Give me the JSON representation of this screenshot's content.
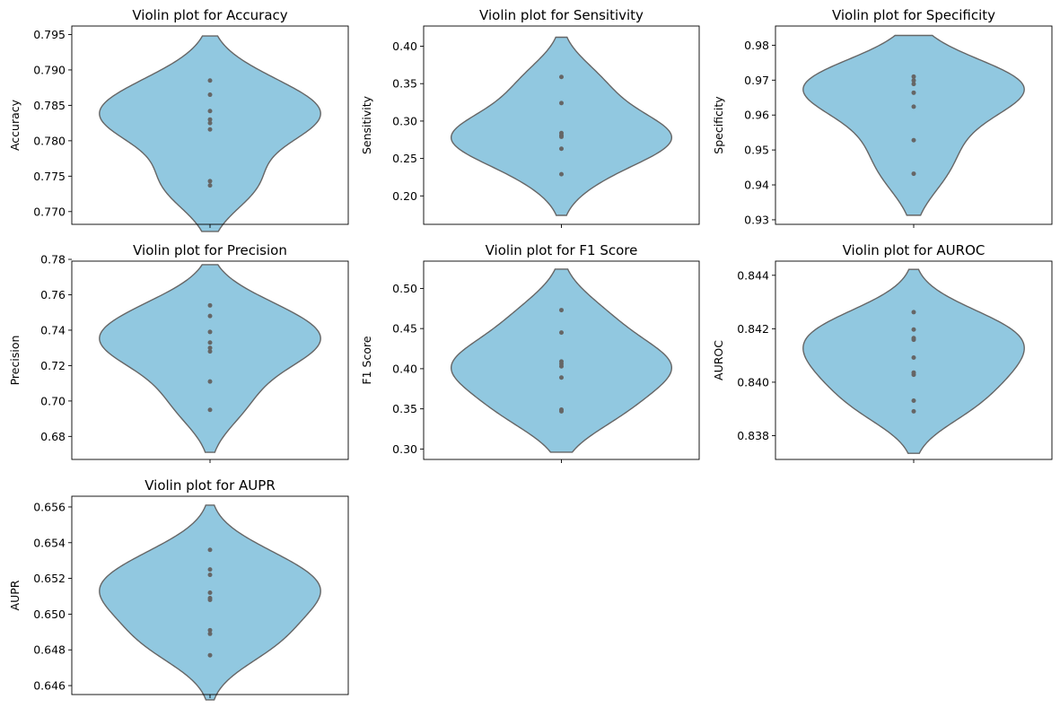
{
  "chart_data": [
    {
      "type": "violin",
      "title": "Violin plot for Accuracy",
      "ylabel": "Accuracy",
      "ylim": [
        0.7682,
        0.7962
      ],
      "yticks": [
        "0.770",
        "0.775",
        "0.780",
        "0.785",
        "0.790",
        "0.795"
      ],
      "violin_range": [
        0.7672,
        0.7948
      ],
      "points": [
        0.7885,
        0.7865,
        0.7842,
        0.783,
        0.7825,
        0.7816,
        0.7743,
        0.7737
      ],
      "fill_color": "#91C8E0",
      "point_color": "#666666"
    },
    {
      "type": "violin",
      "title": "Violin plot for Sensitivity",
      "ylabel": "Sensitivity",
      "ylim": [
        0.162,
        0.427
      ],
      "yticks": [
        "0.20",
        "0.25",
        "0.30",
        "0.35",
        "0.40"
      ],
      "violin_range": [
        0.174,
        0.412
      ],
      "points": [
        0.359,
        0.324,
        0.284,
        0.281,
        0.279,
        0.263,
        0.229
      ],
      "fill_color": "#91C8E0",
      "point_color": "#666666"
    },
    {
      "type": "violin",
      "title": "Violin plot for Specificity",
      "ylabel": "Specificity",
      "ylim": [
        0.9287,
        0.9855
      ],
      "yticks": [
        "0.93",
        "0.94",
        "0.95",
        "0.96",
        "0.97",
        "0.98"
      ],
      "violin_range": [
        0.9313,
        0.9828
      ],
      "points": [
        0.971,
        0.9699,
        0.9689,
        0.9664,
        0.9624,
        0.9528,
        0.9432
      ],
      "fill_color": "#91C8E0",
      "point_color": "#666666"
    },
    {
      "type": "violin",
      "title": "Violin plot for Precision",
      "ylabel": "Precision",
      "ylim": [
        0.667,
        0.779
      ],
      "yticks": [
        "0.68",
        "0.70",
        "0.72",
        "0.74",
        "0.76",
        "0.78"
      ],
      "violin_range": [
        0.671,
        0.777
      ],
      "points": [
        0.754,
        0.748,
        0.739,
        0.733,
        0.73,
        0.728,
        0.711,
        0.695
      ],
      "fill_color": "#91C8E0",
      "point_color": "#666666"
    },
    {
      "type": "violin",
      "title": "Violin plot for F1 Score",
      "ylabel": "F1 Score",
      "ylim": [
        0.287,
        0.534
      ],
      "yticks": [
        "0.30",
        "0.35",
        "0.40",
        "0.45",
        "0.50"
      ],
      "violin_range": [
        0.296,
        0.524
      ],
      "points": [
        0.473,
        0.445,
        0.409,
        0.406,
        0.403,
        0.389,
        0.349,
        0.347
      ],
      "fill_color": "#91C8E0",
      "point_color": "#666666"
    },
    {
      "type": "violin",
      "title": "Violin plot for AUROC",
      "ylabel": "AUROC",
      "ylim": [
        0.83711,
        0.84453
      ],
      "yticks": [
        "0.838",
        "0.840",
        "0.842",
        "0.844"
      ],
      "violin_range": [
        0.83734,
        0.84422
      ],
      "points": [
        0.84262,
        0.84197,
        0.84165,
        0.84159,
        0.84092,
        0.84036,
        0.84028,
        0.83931,
        0.83891
      ],
      "fill_color": "#91C8E0",
      "point_color": "#666666"
    },
    {
      "type": "violin",
      "title": "Violin plot for AUPR",
      "ylabel": "AUPR",
      "ylim": [
        0.6455,
        0.6566
      ],
      "yticks": [
        "0.646",
        "0.648",
        "0.650",
        "0.652",
        "0.654",
        "0.656"
      ],
      "violin_range": [
        0.6452,
        0.6561
      ],
      "points": [
        0.6536,
        0.6525,
        0.6522,
        0.6512,
        0.6509,
        0.6508,
        0.6491,
        0.6489,
        0.6477
      ],
      "fill_color": "#91C8E0",
      "point_color": "#666666"
    }
  ]
}
